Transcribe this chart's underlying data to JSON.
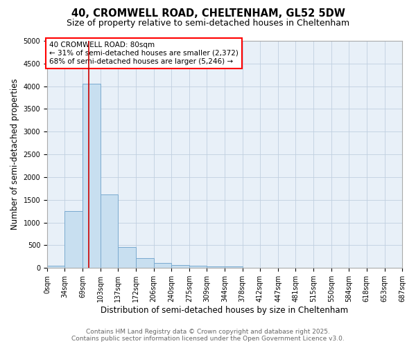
{
  "title_line1": "40, CROMWELL ROAD, CHELTENHAM, GL52 5DW",
  "title_line2": "Size of property relative to semi-detached houses in Cheltenham",
  "xlabel": "Distribution of semi-detached houses by size in Cheltenham",
  "ylabel": "Number of semi-detached properties",
  "annotation_line1": "40 CROMWELL ROAD: 80sqm",
  "annotation_line2": "← 31% of semi-detached houses are smaller (2,372)",
  "annotation_line3": "68% of semi-detached houses are larger (5,246) →",
  "property_size": 80,
  "bin_edges": [
    0,
    34,
    69,
    103,
    137,
    172,
    206,
    240,
    275,
    309,
    344,
    378,
    412,
    447,
    481,
    515,
    550,
    584,
    618,
    653,
    687
  ],
  "bar_heights": [
    50,
    1250,
    4050,
    1620,
    460,
    210,
    110,
    60,
    55,
    35,
    30,
    0,
    0,
    0,
    0,
    0,
    0,
    0,
    0,
    0
  ],
  "bar_color": "#c8dff0",
  "bar_edge_color": "#7aaacf",
  "red_line_color": "#cc0000",
  "ylim": [
    0,
    5000
  ],
  "fig_bg_color": "#ffffff",
  "plot_bg_color": "#e8f0f8",
  "grid_color": "#c0cfe0",
  "footer_line1": "Contains HM Land Registry data © Crown copyright and database right 2025.",
  "footer_line2": "Contains public sector information licensed under the Open Government Licence v3.0.",
  "title_fontsize": 10.5,
  "subtitle_fontsize": 9,
  "axis_label_fontsize": 8.5,
  "tick_fontsize": 7,
  "annotation_fontsize": 7.5,
  "footer_fontsize": 6.5
}
